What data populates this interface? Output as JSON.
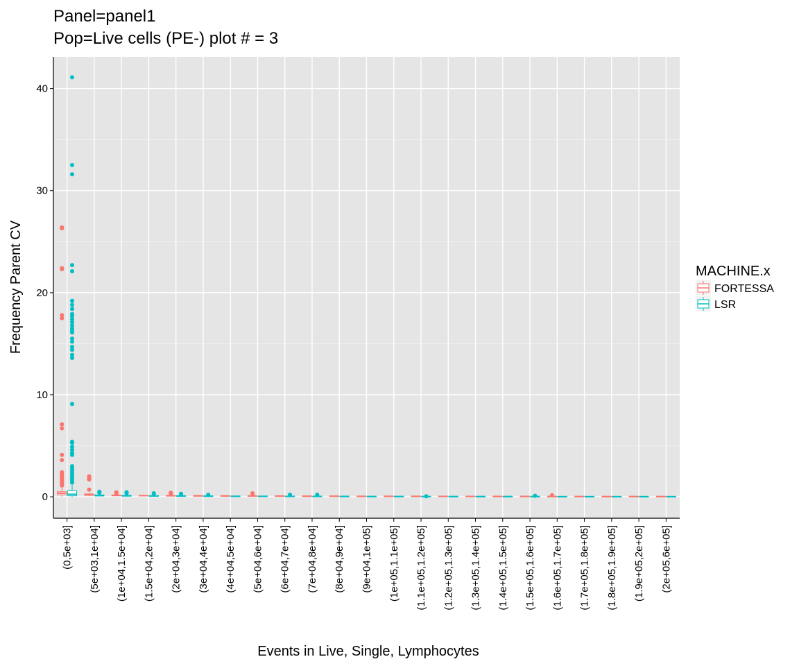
{
  "chart_data": {
    "type": "box",
    "title": "Panel=panel1",
    "subtitle": "Pop=Live cells (PE-) plot # = 3",
    "xlabel": "Events in Live, Single, Lymphocytes",
    "ylabel": "Frequency Parent CV",
    "ylim": [
      -2.1,
      43.1
    ],
    "yticks": [
      0,
      10,
      20,
      30,
      40
    ],
    "grid": true,
    "legend": {
      "title": "MACHINE.x",
      "placement": "right",
      "entries": [
        {
          "name": "FORTESSA",
          "color": "#F8766D"
        },
        {
          "name": "LSR",
          "color": "#00BFC4"
        }
      ]
    },
    "categories": [
      "(0,5e+03]",
      "(5e+03,1e+04]",
      "(1e+04,1.5e+04]",
      "(1.5e+04,2e+04]",
      "(2e+04,3e+04]",
      "(3e+04,4e+04]",
      "(4e+04,5e+04]",
      "(5e+04,6e+04]",
      "(6e+04,7e+04]",
      "(7e+04,8e+04]",
      "(8e+04,9e+04]",
      "(9e+04,1e+05]",
      "(1e+05,1.1e+05]",
      "(1.1e+05,1.2e+05]",
      "(1.2e+05,1.3e+05]",
      "(1.3e+05,1.4e+05]",
      "(1.4e+05,1.5e+05]",
      "(1.5e+05,1.6e+05]",
      "(1.6e+05,1.7e+05]",
      "(1.7e+05,1.8e+05]",
      "(1.8e+05,1.9e+05]",
      "(1.9e+05,2e+05]",
      "(2e+05,6e+05]"
    ],
    "series": [
      {
        "name": "FORTESSA",
        "color": "#F8766D",
        "boxes": [
          {
            "q1": 0.2,
            "median": 0.35,
            "q3": 0.5,
            "lo": 0.0,
            "hi": 0.9,
            "outliers": [
              26.4,
              26.3,
              22.4,
              22.3,
              17.8,
              17.5,
              7.1,
              6.7,
              4.1,
              3.6,
              2.4,
              2.2,
              2.0,
              1.9,
              1.8,
              1.7,
              1.6,
              1.5,
              1.4,
              1.3,
              1.2,
              1.1
            ]
          },
          {
            "q1": 0.15,
            "median": 0.2,
            "q3": 0.28,
            "lo": 0.05,
            "hi": 0.4,
            "outliers": [
              2.0,
              1.9,
              1.8,
              1.7,
              0.7
            ]
          },
          {
            "q1": 0.1,
            "median": 0.14,
            "q3": 0.18,
            "lo": 0.05,
            "hi": 0.25,
            "outliers": [
              0.45,
              0.4,
              0.35
            ]
          },
          {
            "q1": 0.08,
            "median": 0.11,
            "q3": 0.14,
            "lo": 0.04,
            "hi": 0.2,
            "outliers": []
          },
          {
            "q1": 0.07,
            "median": 0.1,
            "q3": 0.13,
            "lo": 0.03,
            "hi": 0.18,
            "outliers": [
              0.4,
              0.3
            ]
          },
          {
            "q1": 0.06,
            "median": 0.09,
            "q3": 0.12,
            "lo": 0.03,
            "hi": 0.16,
            "outliers": []
          },
          {
            "q1": 0.06,
            "median": 0.08,
            "q3": 0.11,
            "lo": 0.03,
            "hi": 0.15,
            "outliers": []
          },
          {
            "q1": 0.05,
            "median": 0.08,
            "q3": 0.1,
            "lo": 0.02,
            "hi": 0.14,
            "outliers": [
              0.35,
              0.3
            ]
          },
          {
            "q1": 0.05,
            "median": 0.07,
            "q3": 0.09,
            "lo": 0.02,
            "hi": 0.13,
            "outliers": []
          },
          {
            "q1": 0.04,
            "median": 0.06,
            "q3": 0.08,
            "lo": 0.02,
            "hi": 0.12,
            "outliers": []
          },
          {
            "q1": 0.04,
            "median": 0.06,
            "q3": 0.08,
            "lo": 0.02,
            "hi": 0.11,
            "outliers": []
          },
          {
            "q1": 0.04,
            "median": 0.05,
            "q3": 0.07,
            "lo": 0.02,
            "hi": 0.1,
            "outliers": []
          },
          {
            "q1": 0.03,
            "median": 0.05,
            "q3": 0.07,
            "lo": 0.01,
            "hi": 0.09,
            "outliers": []
          },
          {
            "q1": 0.03,
            "median": 0.05,
            "q3": 0.06,
            "lo": 0.01,
            "hi": 0.09,
            "outliers": []
          },
          {
            "q1": 0.03,
            "median": 0.04,
            "q3": 0.06,
            "lo": 0.01,
            "hi": 0.08,
            "outliers": []
          },
          {
            "q1": 0.03,
            "median": 0.04,
            "q3": 0.06,
            "lo": 0.01,
            "hi": 0.08,
            "outliers": []
          },
          {
            "q1": 0.03,
            "median": 0.04,
            "q3": 0.05,
            "lo": 0.01,
            "hi": 0.07,
            "outliers": []
          },
          {
            "q1": 0.02,
            "median": 0.04,
            "q3": 0.05,
            "lo": 0.01,
            "hi": 0.07,
            "outliers": []
          },
          {
            "q1": 0.02,
            "median": 0.03,
            "q3": 0.05,
            "lo": 0.01,
            "hi": 0.07,
            "outliers": [
              0.15
            ]
          },
          {
            "q1": 0.02,
            "median": 0.03,
            "q3": 0.05,
            "lo": 0.01,
            "hi": 0.07,
            "outliers": []
          },
          {
            "q1": 0.02,
            "median": 0.03,
            "q3": 0.04,
            "lo": 0.01,
            "hi": 0.06,
            "outliers": []
          },
          {
            "q1": 0.02,
            "median": 0.03,
            "q3": 0.04,
            "lo": 0.01,
            "hi": 0.06,
            "outliers": []
          },
          {
            "q1": 0.02,
            "median": 0.03,
            "q3": 0.04,
            "lo": 0.01,
            "hi": 0.06,
            "outliers": []
          }
        ]
      },
      {
        "name": "LSR",
        "color": "#00BFC4",
        "boxes": [
          {
            "q1": 0.1,
            "median": 0.25,
            "q3": 0.6,
            "lo": 0.0,
            "hi": 1.2,
            "outliers": [
              41.1,
              32.5,
              31.6,
              22.7,
              22.1,
              19.2,
              18.8,
              18.4,
              17.9,
              17.7,
              17.4,
              17.1,
              16.8,
              16.5,
              16.3,
              16.1,
              15.5,
              15.2,
              14.7,
              14.4,
              13.9,
              13.6,
              9.1,
              5.4,
              5.3,
              4.9,
              4.6,
              4.3,
              4.1,
              3.0,
              2.8,
              2.6,
              2.4,
              2.2,
              2.0,
              1.9,
              1.7,
              1.5,
              1.4
            ]
          },
          {
            "q1": 0.08,
            "median": 0.12,
            "q3": 0.18,
            "lo": 0.03,
            "hi": 0.28,
            "outliers": [
              0.5,
              0.45,
              0.4
            ]
          },
          {
            "q1": 0.06,
            "median": 0.1,
            "q3": 0.14,
            "lo": 0.02,
            "hi": 0.22,
            "outliers": [
              0.45,
              0.4,
              0.35
            ]
          },
          {
            "q1": 0.05,
            "median": 0.08,
            "q3": 0.11,
            "lo": 0.02,
            "hi": 0.17,
            "outliers": [
              0.35,
              0.3
            ]
          },
          {
            "q1": 0.04,
            "median": 0.07,
            "q3": 0.1,
            "lo": 0.01,
            "hi": 0.15,
            "outliers": [
              0.3,
              0.25
            ]
          },
          {
            "q1": 0.04,
            "median": 0.06,
            "q3": 0.09,
            "lo": 0.01,
            "hi": 0.14,
            "outliers": [
              0.2
            ]
          },
          {
            "q1": 0.03,
            "median": 0.05,
            "q3": 0.08,
            "lo": 0.01,
            "hi": 0.12,
            "outliers": []
          },
          {
            "q1": 0.03,
            "median": 0.05,
            "q3": 0.07,
            "lo": 0.01,
            "hi": 0.11,
            "outliers": []
          },
          {
            "q1": 0.03,
            "median": 0.04,
            "q3": 0.06,
            "lo": 0.01,
            "hi": 0.1,
            "outliers": [
              0.2
            ]
          },
          {
            "q1": 0.02,
            "median": 0.04,
            "q3": 0.06,
            "lo": 0.01,
            "hi": 0.09,
            "outliers": [
              0.2
            ]
          },
          {
            "q1": 0.02,
            "median": 0.04,
            "q3": 0.05,
            "lo": 0.01,
            "hi": 0.08,
            "outliers": []
          },
          {
            "q1": 0.02,
            "median": 0.03,
            "q3": 0.05,
            "lo": 0.01,
            "hi": 0.08,
            "outliers": []
          },
          {
            "q1": 0.02,
            "median": 0.03,
            "q3": 0.05,
            "lo": 0.01,
            "hi": 0.07,
            "outliers": []
          },
          {
            "q1": 0.02,
            "median": 0.03,
            "q3": 0.04,
            "lo": 0.01,
            "hi": 0.07,
            "outliers": [
              0.05
            ]
          },
          {
            "q1": 0.02,
            "median": 0.03,
            "q3": 0.04,
            "lo": 0.01,
            "hi": 0.06,
            "outliers": []
          },
          {
            "q1": 0.02,
            "median": 0.03,
            "q3": 0.04,
            "lo": 0.01,
            "hi": 0.06,
            "outliers": []
          },
          {
            "q1": 0.02,
            "median": 0.03,
            "q3": 0.04,
            "lo": 0.01,
            "hi": 0.06,
            "outliers": []
          },
          {
            "q1": 0.02,
            "median": 0.03,
            "q3": 0.04,
            "lo": 0.01,
            "hi": 0.06,
            "outliers": [
              0.1
            ]
          },
          {
            "q1": 0.02,
            "median": 0.02,
            "q3": 0.03,
            "lo": 0.01,
            "hi": 0.05,
            "outliers": []
          },
          {
            "q1": 0.02,
            "median": 0.02,
            "q3": 0.03,
            "lo": 0.01,
            "hi": 0.05,
            "outliers": []
          },
          {
            "q1": 0.01,
            "median": 0.02,
            "q3": 0.03,
            "lo": 0.0,
            "hi": 0.05,
            "outliers": []
          },
          {
            "q1": 0.01,
            "median": 0.02,
            "q3": 0.03,
            "lo": 0.0,
            "hi": 0.05,
            "outliers": []
          },
          {
            "q1": 0.01,
            "median": 0.02,
            "q3": 0.03,
            "lo": 0.0,
            "hi": 0.05,
            "outliers": []
          }
        ]
      }
    ]
  }
}
